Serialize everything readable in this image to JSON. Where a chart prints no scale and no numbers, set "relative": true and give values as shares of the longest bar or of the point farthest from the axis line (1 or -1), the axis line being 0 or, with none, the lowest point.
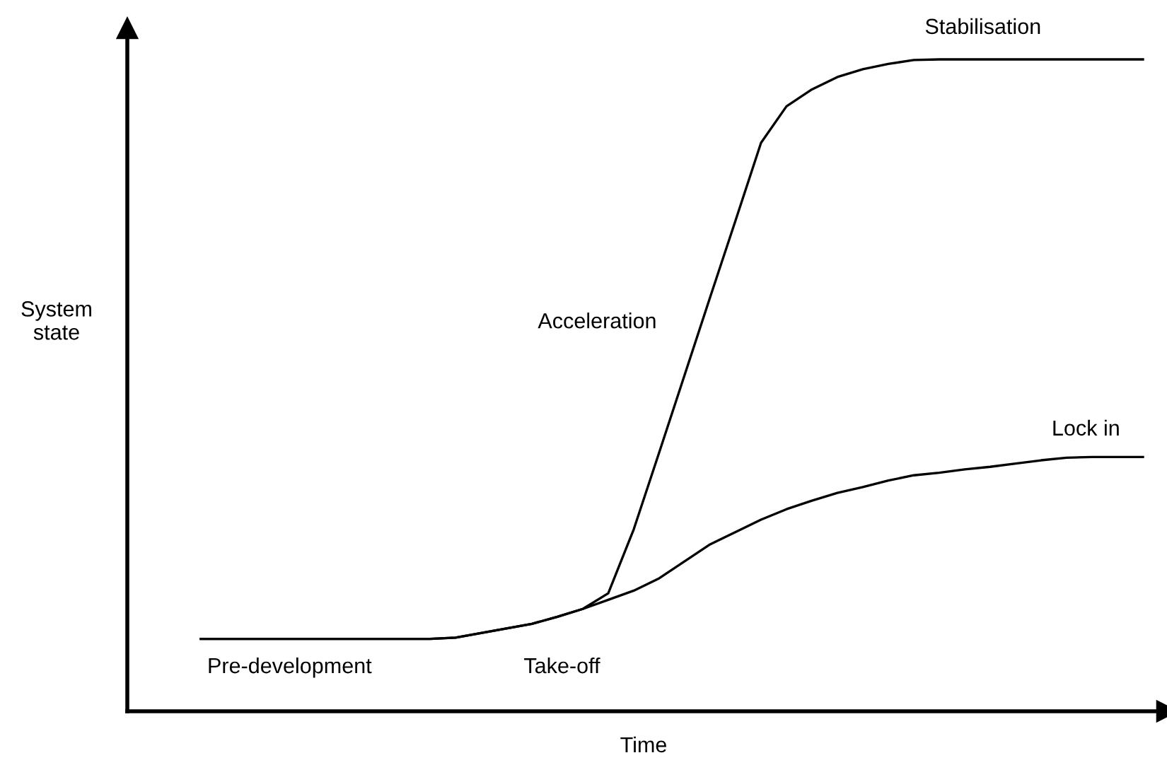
{
  "chart_data": {
    "type": "line",
    "relative": true,
    "xlabel": "Time",
    "ylabel": "System\nstate",
    "marker": "none",
    "line_style": "solid",
    "annotations": [
      "Pre-development",
      "Take-off",
      "Acceleration",
      "Stabilisation",
      "Lock in"
    ],
    "categories": [
      null,
      null,
      null,
      null,
      null,
      null,
      null,
      null,
      null,
      null,
      null,
      null,
      null,
      null,
      null,
      null,
      null,
      null,
      null,
      null,
      null,
      null,
      null,
      null,
      null,
      null,
      null,
      null,
      null,
      null,
      null,
      null,
      null,
      null,
      null,
      null,
      null,
      null
    ],
    "series": [
      {
        "color": "#000000",
        "values": [
          0.111,
          0.111,
          0.111,
          0.111,
          0.111,
          0.111,
          0.111,
          0.111,
          0.111,
          0.111,
          0.113,
          0.12,
          0.127,
          0.134,
          0.145,
          0.157,
          0.181,
          0.279,
          0.397,
          0.516,
          0.635,
          0.753,
          0.872,
          0.928,
          0.954,
          0.973,
          0.985,
          0.993,
          0.999,
          1,
          1,
          1,
          1,
          1,
          1,
          1,
          1,
          1
        ]
      },
      {
        "color": "#000000",
        "values": [
          0.111,
          0.111,
          0.111,
          0.111,
          0.111,
          0.111,
          0.111,
          0.111,
          0.111,
          0.111,
          0.113,
          0.12,
          0.127,
          0.134,
          0.145,
          0.157,
          0.171,
          0.185,
          0.204,
          0.23,
          0.256,
          0.275,
          0.294,
          0.31,
          0.323,
          0.335,
          0.344,
          0.354,
          0.362,
          0.366,
          0.371,
          0.375,
          0.38,
          0.385,
          0.389,
          0.39,
          0.39,
          0.39
        ]
      }
    ]
  }
}
